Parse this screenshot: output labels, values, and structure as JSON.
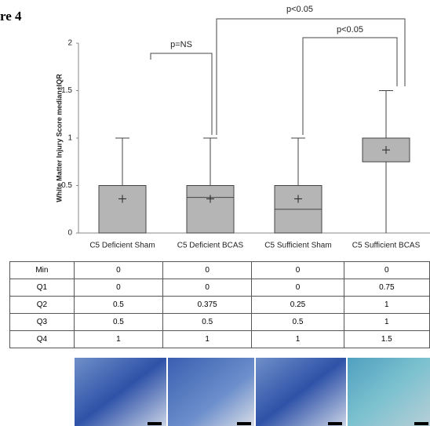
{
  "chart_data": {
    "type": "box",
    "title": "re 4",
    "ylabel": "White Matter Injury Score median±IQR",
    "categories": [
      "C5 Deficient  Sham",
      "C5 Deficient BCAS",
      "C5 Sufficient Sham",
      "C5 Sufficient BCAS"
    ],
    "min": [
      0,
      0,
      0,
      0
    ],
    "q1": [
      0,
      0,
      0,
      0.75
    ],
    "median": [
      0.5,
      0.375,
      0.25,
      1
    ],
    "q3": [
      0.5,
      0.5,
      0.5,
      1
    ],
    "max": [
      1,
      1,
      1,
      1.5
    ],
    "mean": [
      0.36,
      0.36,
      0.36,
      0.875
    ],
    "color": "#b5b5b5",
    "ylim": [
      0,
      2
    ],
    "yticks": [
      0,
      0.5,
      1,
      1.5,
      2
    ],
    "annotations": [
      "p=NS",
      "p<0.05",
      "p<0.05"
    ]
  },
  "table": {
    "rows": [
      [
        "Min",
        0,
        0,
        0,
        0
      ],
      [
        "Q1",
        0,
        0,
        0,
        0.75
      ],
      [
        "Q2",
        0.5,
        0.375,
        0.25,
        1
      ],
      [
        "Q3",
        0.5,
        0.5,
        0.5,
        1
      ],
      [
        "Q4",
        1,
        1,
        1,
        1.5
      ]
    ]
  }
}
